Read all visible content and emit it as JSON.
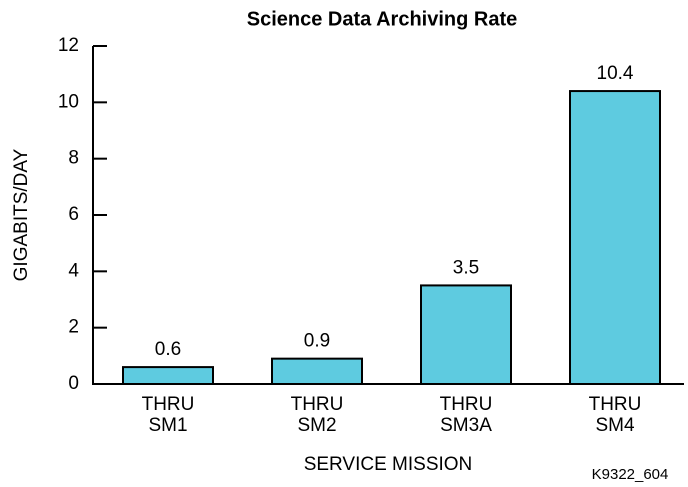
{
  "chart_data": {
    "type": "bar",
    "title": "Science Data Archiving Rate",
    "y_label": "GIGABITS/DAY",
    "x_label": "SERVICE MISSION",
    "annotation": "K9322_604",
    "categories": [
      "THRU\nSM1",
      "THRU\nSM2",
      "THRU\nSM3A",
      "THRU\nSM4"
    ],
    "values": [
      0.6,
      0.9,
      3.5,
      10.4
    ],
    "color": "#5ecbe0",
    "ylim": [
      0,
      12
    ],
    "yticks": [
      0,
      2,
      4,
      6,
      8,
      10,
      12
    ],
    "grid": false
  }
}
